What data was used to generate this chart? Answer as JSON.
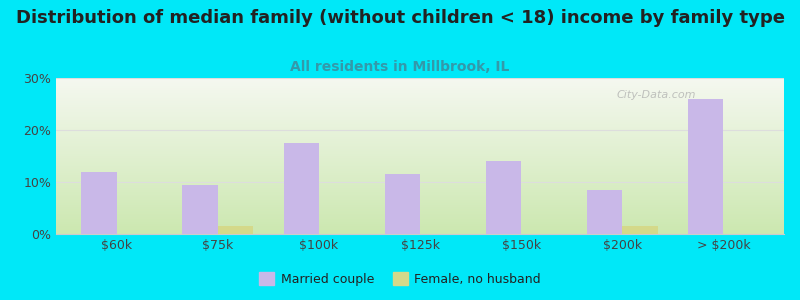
{
  "title": "Distribution of median family (without children < 18) income by family type",
  "subtitle": "All residents in Millbrook, IL",
  "categories": [
    "$60k",
    "$75k",
    "$100k",
    "$125k",
    "$150k",
    "$200k",
    "> $200k"
  ],
  "married_couple": [
    12.0,
    9.5,
    17.5,
    11.5,
    14.0,
    8.5,
    26.0
  ],
  "female_no_husband": [
    0.0,
    1.5,
    0.0,
    0.0,
    0.0,
    1.5,
    0.0
  ],
  "bar_color_married": "#c9b8e8",
  "bar_color_female": "#d4d98a",
  "background_outer": "#00e8f8",
  "plot_bg_top": "#f5f8f0",
  "plot_bg_bottom": "#cce8b0",
  "ylim": [
    0,
    30
  ],
  "yticks": [
    0,
    10,
    20,
    30
  ],
  "ytick_labels": [
    "0%",
    "10%",
    "20%",
    "30%"
  ],
  "title_fontsize": 13,
  "subtitle_fontsize": 10,
  "subtitle_color": "#3399aa",
  "tick_fontsize": 9,
  "bar_width": 0.35,
  "legend_married": "Married couple",
  "legend_female": "Female, no husband",
  "watermark": "City-Data.com",
  "watermark_color": "#aaaaaa",
  "grid_color": "#dddddd"
}
